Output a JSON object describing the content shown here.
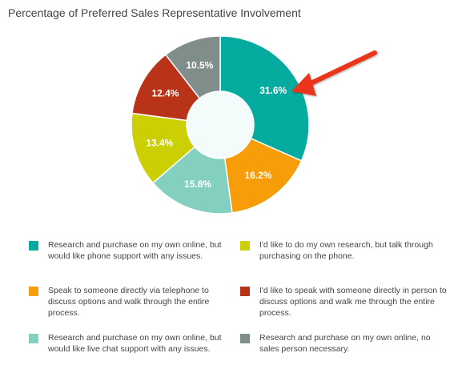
{
  "chart_data": {
    "type": "pie",
    "title": "Percentage of Preferred Sales Representative Involvement",
    "slices": [
      {
        "label": "Research and purchase on my own online, but would like phone support with any issues.",
        "value": 31.6,
        "value_label": "31.6%",
        "color": "#06ab9f"
      },
      {
        "label": "Speak to someone directly via telephone to discuss options and walk through the entire process.",
        "value": 16.2,
        "value_label": "16.2%",
        "color": "#f79d0a"
      },
      {
        "label": "Research and purchase on my own online, but would like live chat support with any issues.",
        "value": 15.8,
        "value_label": "15.8%",
        "color": "#83d0c0"
      },
      {
        "label": "I'd like to do my own research, but talk through purchasing on the phone.",
        "value": 13.4,
        "value_label": "13.4%",
        "color": "#cbcf04"
      },
      {
        "label": "I'd like to speak with someone directly in person to discuss options and walk me through the entire process.",
        "value": 12.4,
        "value_label": "12.4%",
        "color": "#b93318"
      },
      {
        "label": "Research and purchase on my own online, no sales person necessary.",
        "value": 10.5,
        "value_label": "10.5%",
        "color": "#7f8e8b"
      }
    ],
    "legend_placement": "bottom",
    "annotation": "red arrow pointing to the 31.6% slice",
    "arrow_color": "#e8351c"
  }
}
